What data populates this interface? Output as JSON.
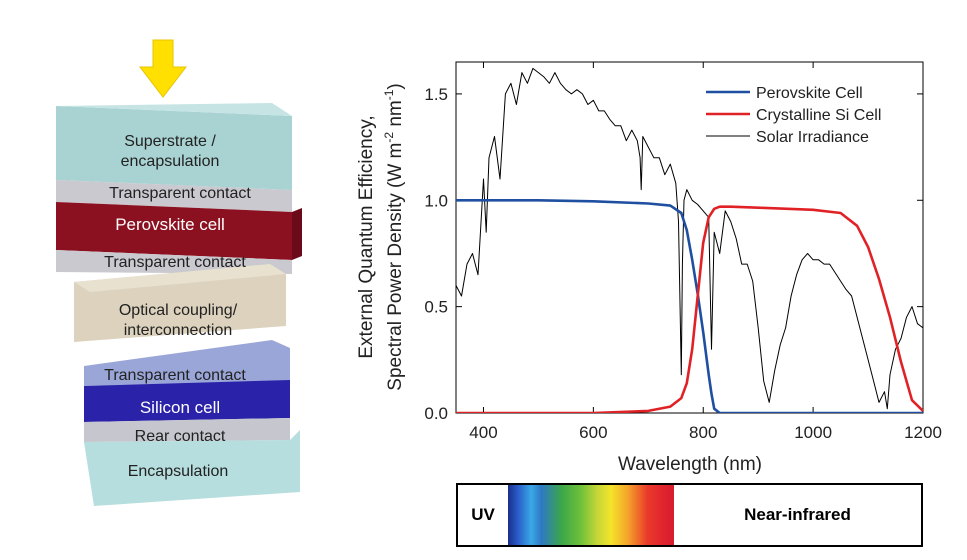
{
  "diagram": {
    "layers": [
      {
        "id": "superstrate",
        "label_line1": "Superstrate /",
        "label_line2": "encapsulation",
        "color": "#a9d3d3"
      },
      {
        "id": "tc1",
        "label": "Transparent contact",
        "color": "#c9c9cf"
      },
      {
        "id": "perovskite",
        "label": "Perovskite cell",
        "color": "#8b1020"
      },
      {
        "id": "tc2",
        "label": "Transparent contact",
        "color": "#c9c9cf"
      },
      {
        "id": "optical",
        "label_line1": "Optical coupling/",
        "label_line2": "interconnection",
        "color": "#dcd2bd"
      },
      {
        "id": "tc3",
        "label": "Transparent contact",
        "color": "#9aa6d8"
      },
      {
        "id": "silicon",
        "label": "Silicon cell",
        "color": "#2a22a8"
      },
      {
        "id": "rear",
        "label": "Rear contact",
        "color": "#c6c6ce"
      },
      {
        "id": "encapsulation",
        "label": "Encapsulation",
        "color": "#b6dede"
      }
    ],
    "arrow_color": "#ffe000"
  },
  "chart_data": {
    "type": "line",
    "xlabel": "Wavelength (nm)",
    "ylabel_line1": "External Quantum Efficiency,",
    "ylabel_line2_prefix": "Spectral Power Density (W m",
    "ylabel_exp1": "-2",
    "ylabel_mid": " nm",
    "ylabel_exp2": "-1",
    "ylabel_suffix": ")",
    "xlim": [
      350,
      1200
    ],
    "ylim": [
      0,
      1.65
    ],
    "xticks": [
      400,
      600,
      800,
      1000,
      1200
    ],
    "xtick_labels": [
      "400",
      "600",
      "800",
      "1000",
      "1200"
    ],
    "yticks": [
      0,
      0.5,
      1.0,
      1.5
    ],
    "ytick_labels": [
      "0.0",
      "0.5",
      "1.0",
      "1.5"
    ],
    "series": [
      {
        "name": "Perovskite Cell",
        "color": "#1f4fa0",
        "x": [
          350,
          400,
          500,
          600,
          700,
          740,
          760,
          770,
          780,
          790,
          800,
          810,
          815,
          820,
          830,
          1200
        ],
        "values": [
          1.0,
          1.0,
          1.0,
          0.995,
          0.985,
          0.975,
          0.94,
          0.86,
          0.72,
          0.56,
          0.38,
          0.18,
          0.09,
          0.02,
          0.0,
          0.0
        ]
      },
      {
        "name": "Crystalline Si Cell",
        "color": "#e02226",
        "x": [
          350,
          600,
          700,
          740,
          760,
          770,
          780,
          790,
          800,
          810,
          820,
          830,
          850,
          900,
          1000,
          1050,
          1080,
          1100,
          1120,
          1140,
          1160,
          1180,
          1200
        ],
        "values": [
          0.0,
          0.0,
          0.01,
          0.03,
          0.07,
          0.14,
          0.3,
          0.55,
          0.8,
          0.92,
          0.96,
          0.97,
          0.97,
          0.965,
          0.955,
          0.94,
          0.88,
          0.78,
          0.63,
          0.45,
          0.24,
          0.06,
          0.01
        ]
      },
      {
        "name": "Solar Irradiance",
        "color": "#000000",
        "x": [
          350,
          360,
          370,
          380,
          390,
          400,
          405,
          410,
          420,
          430,
          440,
          450,
          460,
          470,
          480,
          490,
          500,
          510,
          520,
          530,
          540,
          550,
          560,
          570,
          580,
          590,
          600,
          610,
          620,
          630,
          640,
          650,
          660,
          670,
          680,
          685,
          687,
          690,
          700,
          710,
          720,
          730,
          740,
          750,
          755,
          760,
          762,
          765,
          770,
          780,
          790,
          800,
          810,
          815,
          820,
          830,
          840,
          850,
          860,
          870,
          880,
          890,
          900,
          910,
          920,
          930,
          940,
          950,
          960,
          970,
          980,
          990,
          1000,
          1010,
          1020,
          1030,
          1040,
          1050,
          1060,
          1070,
          1080,
          1090,
          1100,
          1110,
          1120,
          1130,
          1135,
          1140,
          1150,
          1160,
          1170,
          1180,
          1190,
          1200
        ],
        "values": [
          0.6,
          0.55,
          0.7,
          0.75,
          0.65,
          1.1,
          0.85,
          1.2,
          1.3,
          1.1,
          1.5,
          1.55,
          1.45,
          1.6,
          1.55,
          1.62,
          1.6,
          1.58,
          1.55,
          1.6,
          1.55,
          1.52,
          1.5,
          1.52,
          1.5,
          1.45,
          1.47,
          1.42,
          1.42,
          1.38,
          1.35,
          1.35,
          1.28,
          1.33,
          1.28,
          1.2,
          1.05,
          1.3,
          1.25,
          1.2,
          1.2,
          1.12,
          1.17,
          1.08,
          0.9,
          0.18,
          0.7,
          1.0,
          1.05,
          1.0,
          0.98,
          0.95,
          0.92,
          0.3,
          0.85,
          0.75,
          0.95,
          0.9,
          0.82,
          0.7,
          0.7,
          0.62,
          0.4,
          0.15,
          0.05,
          0.2,
          0.32,
          0.4,
          0.55,
          0.65,
          0.72,
          0.75,
          0.72,
          0.72,
          0.7,
          0.7,
          0.66,
          0.62,
          0.58,
          0.55,
          0.45,
          0.35,
          0.25,
          0.15,
          0.05,
          0.1,
          0.02,
          0.18,
          0.3,
          0.35,
          0.45,
          0.5,
          0.42,
          0.4
        ]
      }
    ],
    "legend_position": "top-right"
  },
  "spectrum_bar": {
    "uv_label": "UV",
    "nir_label": "Near-infrared"
  }
}
